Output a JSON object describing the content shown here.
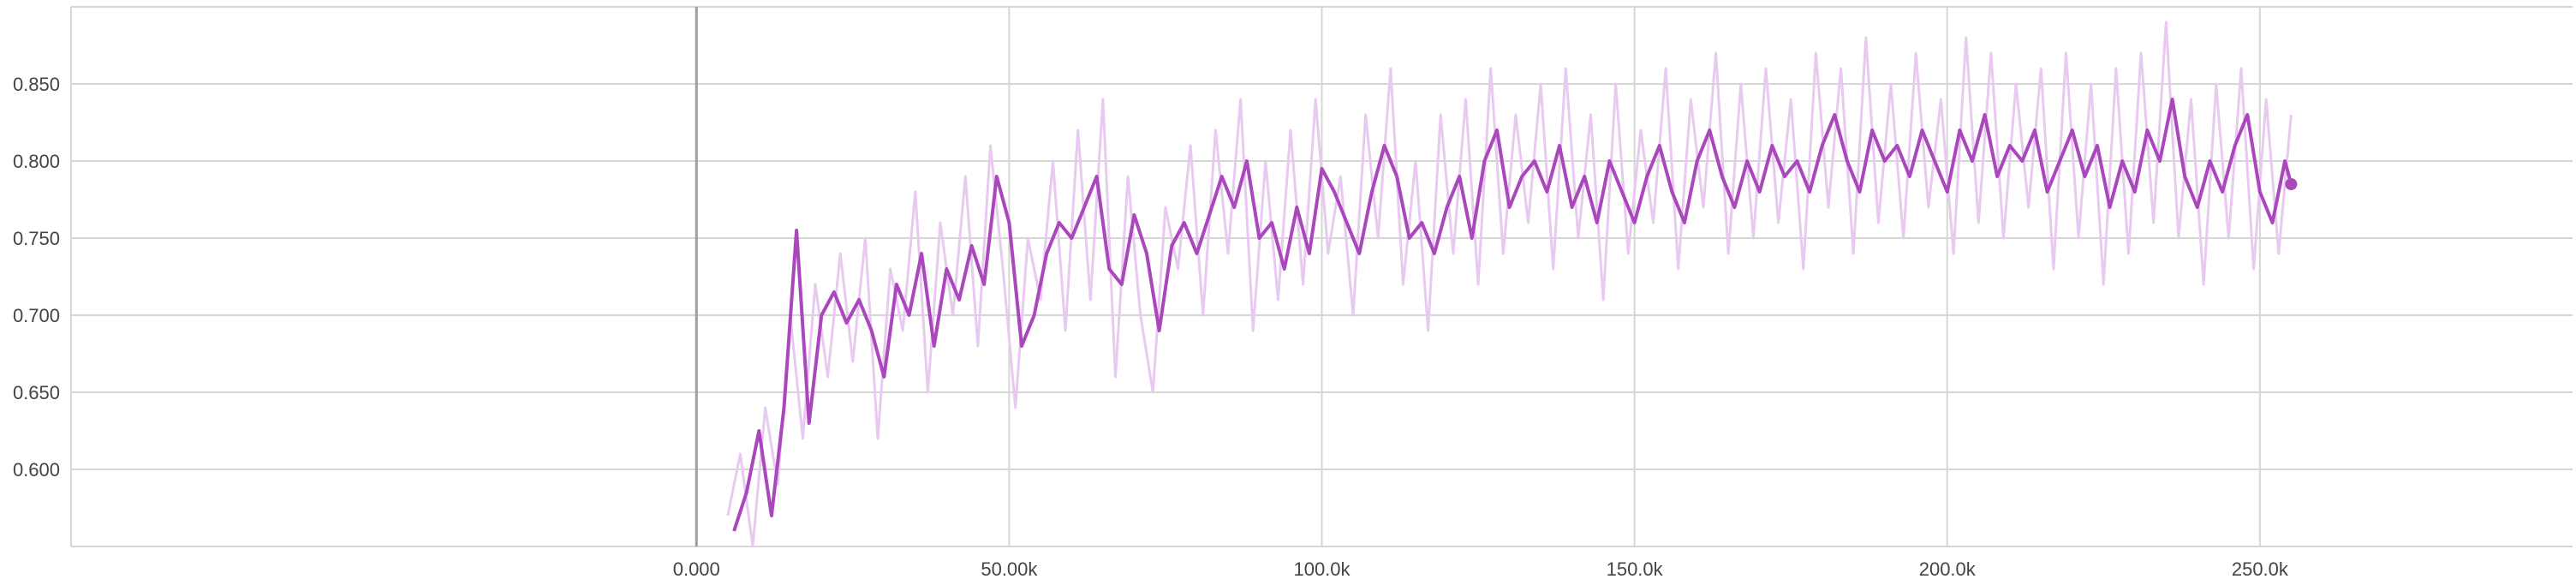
{
  "chart_data": {
    "type": "line",
    "title": "",
    "xlabel": "",
    "ylabel": "",
    "xlim": [
      -100000,
      300000
    ],
    "ylim": [
      0.55,
      0.9
    ],
    "grid": true,
    "x_ticks": [
      0,
      50000,
      100000,
      150000,
      200000,
      250000
    ],
    "x_tick_labels": [
      "0.000",
      "50.00k",
      "100.0k",
      "150.0k",
      "200.0k",
      "250.0k"
    ],
    "y_ticks": [
      0.6,
      0.65,
      0.7,
      0.75,
      0.8,
      0.85
    ],
    "y_tick_labels": [
      "0.600",
      "0.650",
      "0.700",
      "0.750",
      "0.800",
      "0.850"
    ],
    "colors": {
      "smoothed": "#ab47bc",
      "raw": "#e8c9ef",
      "grid": "#d6d6d6",
      "axis": "#9e9e9e"
    },
    "series": [
      {
        "role": "smoothed",
        "points": [
          [
            6000,
            0.56
          ],
          [
            8000,
            0.585
          ],
          [
            10000,
            0.625
          ],
          [
            12000,
            0.57
          ],
          [
            14000,
            0.64
          ],
          [
            16000,
            0.755
          ],
          [
            18000,
            0.63
          ],
          [
            20000,
            0.7
          ],
          [
            22000,
            0.715
          ],
          [
            24000,
            0.695
          ],
          [
            26000,
            0.71
          ],
          [
            28000,
            0.69
          ],
          [
            30000,
            0.66
          ],
          [
            32000,
            0.72
          ],
          [
            34000,
            0.7
          ],
          [
            36000,
            0.74
          ],
          [
            38000,
            0.68
          ],
          [
            40000,
            0.73
          ],
          [
            42000,
            0.71
          ],
          [
            44000,
            0.745
          ],
          [
            46000,
            0.72
          ],
          [
            48000,
            0.79
          ],
          [
            50000,
            0.76
          ],
          [
            52000,
            0.68
          ],
          [
            54000,
            0.7
          ],
          [
            56000,
            0.74
          ],
          [
            58000,
            0.76
          ],
          [
            60000,
            0.75
          ],
          [
            62000,
            0.77
          ],
          [
            64000,
            0.79
          ],
          [
            66000,
            0.73
          ],
          [
            68000,
            0.72
          ],
          [
            70000,
            0.765
          ],
          [
            72000,
            0.74
          ],
          [
            74000,
            0.69
          ],
          [
            76000,
            0.745
          ],
          [
            78000,
            0.76
          ],
          [
            80000,
            0.74
          ],
          [
            82000,
            0.765
          ],
          [
            84000,
            0.79
          ],
          [
            86000,
            0.77
          ],
          [
            88000,
            0.8
          ],
          [
            90000,
            0.75
          ],
          [
            92000,
            0.76
          ],
          [
            94000,
            0.73
          ],
          [
            96000,
            0.77
          ],
          [
            98000,
            0.74
          ],
          [
            100000,
            0.795
          ],
          [
            102000,
            0.78
          ],
          [
            104000,
            0.76
          ],
          [
            106000,
            0.74
          ],
          [
            108000,
            0.78
          ],
          [
            110000,
            0.81
          ],
          [
            112000,
            0.79
          ],
          [
            114000,
            0.75
          ],
          [
            116000,
            0.76
          ],
          [
            118000,
            0.74
          ],
          [
            120000,
            0.77
          ],
          [
            122000,
            0.79
          ],
          [
            124000,
            0.75
          ],
          [
            126000,
            0.8
          ],
          [
            128000,
            0.82
          ],
          [
            130000,
            0.77
          ],
          [
            132000,
            0.79
          ],
          [
            134000,
            0.8
          ],
          [
            136000,
            0.78
          ],
          [
            138000,
            0.81
          ],
          [
            140000,
            0.77
          ],
          [
            142000,
            0.79
          ],
          [
            144000,
            0.76
          ],
          [
            146000,
            0.8
          ],
          [
            148000,
            0.78
          ],
          [
            150000,
            0.76
          ],
          [
            152000,
            0.79
          ],
          [
            154000,
            0.81
          ],
          [
            156000,
            0.78
          ],
          [
            158000,
            0.76
          ],
          [
            160000,
            0.8
          ],
          [
            162000,
            0.82
          ],
          [
            164000,
            0.79
          ],
          [
            166000,
            0.77
          ],
          [
            168000,
            0.8
          ],
          [
            170000,
            0.78
          ],
          [
            172000,
            0.81
          ],
          [
            174000,
            0.79
          ],
          [
            176000,
            0.8
          ],
          [
            178000,
            0.78
          ],
          [
            180000,
            0.81
          ],
          [
            182000,
            0.83
          ],
          [
            184000,
            0.8
          ],
          [
            186000,
            0.78
          ],
          [
            188000,
            0.82
          ],
          [
            190000,
            0.8
          ],
          [
            192000,
            0.81
          ],
          [
            194000,
            0.79
          ],
          [
            196000,
            0.82
          ],
          [
            198000,
            0.8
          ],
          [
            200000,
            0.78
          ],
          [
            202000,
            0.82
          ],
          [
            204000,
            0.8
          ],
          [
            206000,
            0.83
          ],
          [
            208000,
            0.79
          ],
          [
            210000,
            0.81
          ],
          [
            212000,
            0.8
          ],
          [
            214000,
            0.82
          ],
          [
            216000,
            0.78
          ],
          [
            218000,
            0.8
          ],
          [
            220000,
            0.82
          ],
          [
            222000,
            0.79
          ],
          [
            224000,
            0.81
          ],
          [
            226000,
            0.77
          ],
          [
            228000,
            0.8
          ],
          [
            230000,
            0.78
          ],
          [
            232000,
            0.82
          ],
          [
            234000,
            0.8
          ],
          [
            236000,
            0.84
          ],
          [
            238000,
            0.79
          ],
          [
            240000,
            0.77
          ],
          [
            242000,
            0.8
          ],
          [
            244000,
            0.78
          ],
          [
            246000,
            0.81
          ],
          [
            248000,
            0.83
          ],
          [
            250000,
            0.78
          ],
          [
            252000,
            0.76
          ],
          [
            254000,
            0.8
          ],
          [
            255000,
            0.785
          ]
        ]
      },
      {
        "role": "raw",
        "points": [
          [
            5000,
            0.57
          ],
          [
            7000,
            0.61
          ],
          [
            9000,
            0.55
          ],
          [
            11000,
            0.64
          ],
          [
            13000,
            0.59
          ],
          [
            15000,
            0.7
          ],
          [
            17000,
            0.62
          ],
          [
            19000,
            0.72
          ],
          [
            21000,
            0.66
          ],
          [
            23000,
            0.74
          ],
          [
            25000,
            0.67
          ],
          [
            27000,
            0.75
          ],
          [
            29000,
            0.62
          ],
          [
            31000,
            0.73
          ],
          [
            33000,
            0.69
          ],
          [
            35000,
            0.78
          ],
          [
            37000,
            0.65
          ],
          [
            39000,
            0.76
          ],
          [
            41000,
            0.7
          ],
          [
            43000,
            0.79
          ],
          [
            45000,
            0.68
          ],
          [
            47000,
            0.81
          ],
          [
            49000,
            0.73
          ],
          [
            51000,
            0.64
          ],
          [
            53000,
            0.75
          ],
          [
            55000,
            0.71
          ],
          [
            57000,
            0.8
          ],
          [
            59000,
            0.69
          ],
          [
            61000,
            0.82
          ],
          [
            63000,
            0.71
          ],
          [
            65000,
            0.84
          ],
          [
            67000,
            0.66
          ],
          [
            69000,
            0.79
          ],
          [
            71000,
            0.7
          ],
          [
            73000,
            0.65
          ],
          [
            75000,
            0.77
          ],
          [
            77000,
            0.73
          ],
          [
            79000,
            0.81
          ],
          [
            81000,
            0.7
          ],
          [
            83000,
            0.82
          ],
          [
            85000,
            0.74
          ],
          [
            87000,
            0.84
          ],
          [
            89000,
            0.69
          ],
          [
            91000,
            0.8
          ],
          [
            93000,
            0.71
          ],
          [
            95000,
            0.82
          ],
          [
            97000,
            0.72
          ],
          [
            99000,
            0.84
          ],
          [
            101000,
            0.74
          ],
          [
            103000,
            0.79
          ],
          [
            105000,
            0.7
          ],
          [
            107000,
            0.83
          ],
          [
            109000,
            0.75
          ],
          [
            111000,
            0.86
          ],
          [
            113000,
            0.72
          ],
          [
            115000,
            0.8
          ],
          [
            117000,
            0.69
          ],
          [
            119000,
            0.83
          ],
          [
            121000,
            0.74
          ],
          [
            123000,
            0.84
          ],
          [
            125000,
            0.72
          ],
          [
            127000,
            0.86
          ],
          [
            129000,
            0.74
          ],
          [
            131000,
            0.83
          ],
          [
            133000,
            0.76
          ],
          [
            135000,
            0.85
          ],
          [
            137000,
            0.73
          ],
          [
            139000,
            0.86
          ],
          [
            141000,
            0.75
          ],
          [
            143000,
            0.83
          ],
          [
            145000,
            0.71
          ],
          [
            147000,
            0.85
          ],
          [
            149000,
            0.74
          ],
          [
            151000,
            0.82
          ],
          [
            153000,
            0.76
          ],
          [
            155000,
            0.86
          ],
          [
            157000,
            0.73
          ],
          [
            159000,
            0.84
          ],
          [
            161000,
            0.77
          ],
          [
            163000,
            0.87
          ],
          [
            165000,
            0.74
          ],
          [
            167000,
            0.85
          ],
          [
            169000,
            0.75
          ],
          [
            171000,
            0.86
          ],
          [
            173000,
            0.76
          ],
          [
            175000,
            0.84
          ],
          [
            177000,
            0.73
          ],
          [
            179000,
            0.87
          ],
          [
            181000,
            0.77
          ],
          [
            183000,
            0.86
          ],
          [
            185000,
            0.74
          ],
          [
            187000,
            0.88
          ],
          [
            189000,
            0.76
          ],
          [
            191000,
            0.85
          ],
          [
            193000,
            0.75
          ],
          [
            195000,
            0.87
          ],
          [
            197000,
            0.77
          ],
          [
            199000,
            0.84
          ],
          [
            201000,
            0.74
          ],
          [
            203000,
            0.88
          ],
          [
            205000,
            0.76
          ],
          [
            207000,
            0.87
          ],
          [
            209000,
            0.75
          ],
          [
            211000,
            0.85
          ],
          [
            213000,
            0.77
          ],
          [
            215000,
            0.86
          ],
          [
            217000,
            0.73
          ],
          [
            219000,
            0.87
          ],
          [
            221000,
            0.75
          ],
          [
            223000,
            0.85
          ],
          [
            225000,
            0.72
          ],
          [
            227000,
            0.86
          ],
          [
            229000,
            0.74
          ],
          [
            231000,
            0.87
          ],
          [
            233000,
            0.76
          ],
          [
            235000,
            0.89
          ],
          [
            237000,
            0.75
          ],
          [
            239000,
            0.84
          ],
          [
            241000,
            0.72
          ],
          [
            243000,
            0.85
          ],
          [
            245000,
            0.75
          ],
          [
            247000,
            0.86
          ],
          [
            249000,
            0.73
          ],
          [
            251000,
            0.84
          ],
          [
            253000,
            0.74
          ],
          [
            255000,
            0.83
          ]
        ]
      }
    ]
  }
}
